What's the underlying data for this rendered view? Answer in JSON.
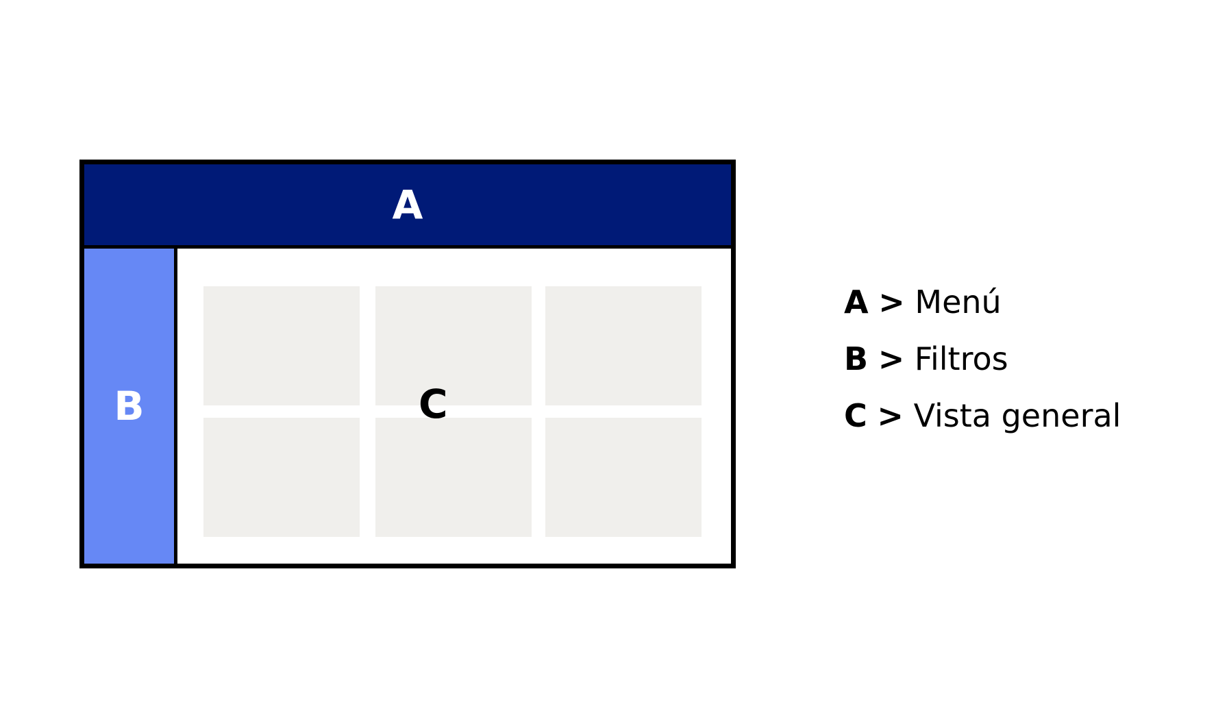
{
  "zones": {
    "a": {
      "label": "A",
      "color": "#001a77"
    },
    "b": {
      "label": "B",
      "color": "#6688f5"
    },
    "c": {
      "label": "C",
      "tile_color": "#f0efec",
      "tile_count": 6
    }
  },
  "legend": [
    {
      "key": "A",
      "separator": ">",
      "text": "Menú"
    },
    {
      "key": "B",
      "separator": ">",
      "text": "Filtros"
    },
    {
      "key": "C",
      "separator": ">",
      "text": "Vista general"
    }
  ]
}
